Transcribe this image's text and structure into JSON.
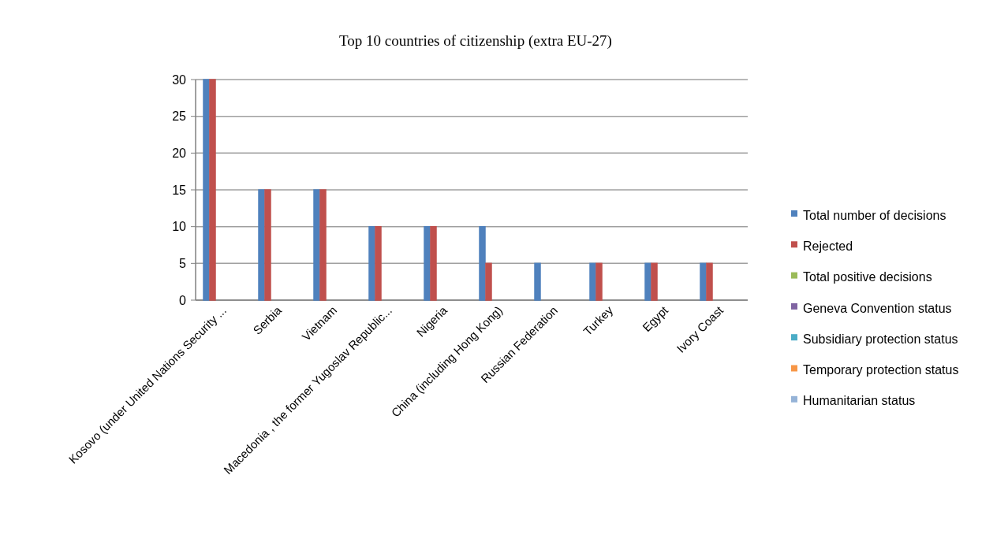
{
  "chart_data": {
    "type": "bar",
    "title": "Top 10 countries of citizenship (extra EU-27)",
    "categories": [
      "Kosovo (under United Nations Security ...",
      "Serbia",
      "Vietnam",
      "Macedonia , the former Yugoslav Republic...",
      "Nigeria",
      "China (including Hong Kong)",
      "Russian Federation",
      "Turkey",
      "Egypt",
      "Ivory Coast"
    ],
    "series": [
      {
        "name": "Total number of decisions",
        "color": "#4f81bd",
        "values": [
          30,
          15,
          15,
          10,
          10,
          10,
          5,
          5,
          5,
          5
        ]
      },
      {
        "name": "Rejected",
        "color": "#c0504d",
        "values": [
          30,
          15,
          15,
          10,
          10,
          5,
          0,
          5,
          5,
          5
        ]
      },
      {
        "name": "Total positive decisions",
        "color": "#9bbb59",
        "values": [
          0,
          0,
          0,
          0,
          0,
          0,
          0,
          0,
          0,
          0
        ]
      },
      {
        "name": "Geneva Convention status",
        "color": "#8064a2",
        "values": [
          0,
          0,
          0,
          0,
          0,
          0,
          0,
          0,
          0,
          0
        ]
      },
      {
        "name": "Subsidiary protection status",
        "color": "#4bacc6",
        "values": [
          0,
          0,
          0,
          0,
          0,
          0,
          0,
          0,
          0,
          0
        ]
      },
      {
        "name": "Temporary protection status",
        "color": "#f79646",
        "values": [
          0,
          0,
          0,
          0,
          0,
          0,
          0,
          0,
          0,
          0
        ]
      },
      {
        "name": "Humanitarian status",
        "color": "#95b3d7",
        "values": [
          0,
          0,
          0,
          0,
          0,
          0,
          0,
          0,
          0,
          0
        ]
      }
    ],
    "ylim": [
      0,
      30
    ],
    "yticks": [
      0,
      5,
      10,
      15,
      20,
      25,
      30
    ],
    "grid": "y",
    "legend": "right"
  }
}
